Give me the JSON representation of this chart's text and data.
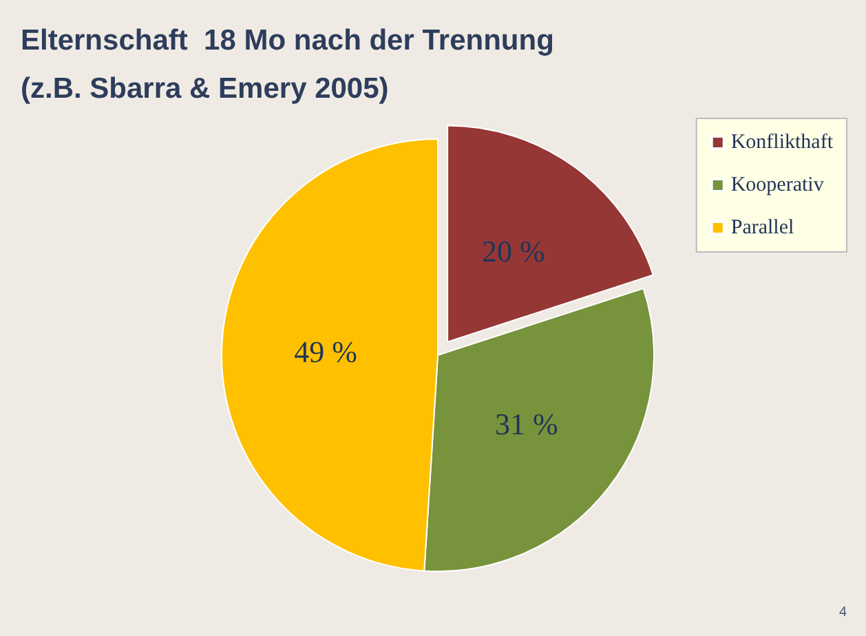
{
  "chart_data": {
    "type": "pie",
    "title": "Elternschaft  18 Mo nach der Trennung",
    "subtitle": "(z.B. Sbarra & Emery 2005)",
    "categories": [
      "Konflikthaft",
      "Kooperativ",
      "Parallel"
    ],
    "values": [
      20,
      31,
      49
    ],
    "colors": [
      "#953735",
      "#77933c",
      "#ffc000"
    ],
    "value_labels": [
      "20 %",
      "31 %",
      "49 %"
    ],
    "legend": "top right",
    "annotations": [
      "4"
    ]
  }
}
